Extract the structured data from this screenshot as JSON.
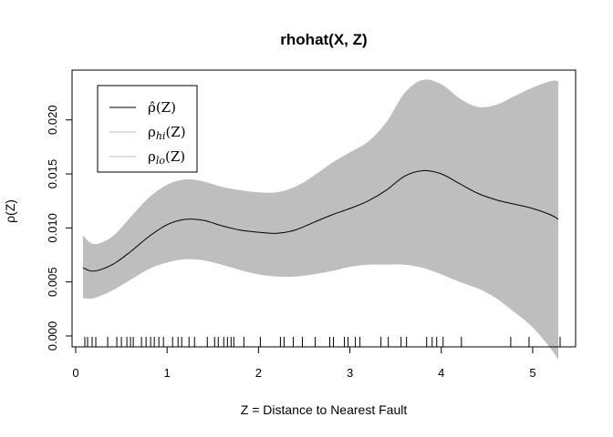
{
  "chart_data": {
    "type": "line",
    "title": "rhohat(X, Z)",
    "xlabel": "Z = Distance to Nearest Fault",
    "ylabel": "ρ(Z)",
    "xlim": [
      0.08,
      5.28
    ],
    "ylim": [
      0.0,
      0.0236
    ],
    "xticks": [
      0,
      1,
      2,
      3,
      4,
      5
    ],
    "yticks": [
      0.0,
      0.005,
      0.01,
      0.015,
      0.02
    ],
    "ytick_labels": [
      "0.000",
      "0.005",
      "0.010",
      "0.015",
      "0.020"
    ],
    "legend_position": "top-left",
    "legend": [
      {
        "base": "ρ̂",
        "sub": "",
        "arg": "(Z)",
        "color": "#000000"
      },
      {
        "base": "ρ",
        "sub": "hi",
        "arg": "(Z)",
        "color": "#bebebe"
      },
      {
        "base": "ρ",
        "sub": "lo",
        "arg": "(Z)",
        "color": "#bebebe"
      }
    ],
    "band_color": "#bebebe",
    "line_color": "#000000",
    "x": [
      0.08,
      0.2,
      0.4,
      0.6,
      0.8,
      1.0,
      1.2,
      1.4,
      1.6,
      1.8,
      2.0,
      2.2,
      2.4,
      2.6,
      2.8,
      3.0,
      3.2,
      3.4,
      3.6,
      3.8,
      4.0,
      4.2,
      4.4,
      4.6,
      4.8,
      5.0,
      5.2,
      5.28
    ],
    "series": [
      {
        "name": "rho_hat",
        "values": [
          0.0063,
          0.006,
          0.0066,
          0.0078,
          0.0092,
          0.0103,
          0.0108,
          0.0107,
          0.0102,
          0.0098,
          0.0096,
          0.0095,
          0.0098,
          0.0105,
          0.0112,
          0.0118,
          0.0125,
          0.0135,
          0.0148,
          0.0153,
          0.015,
          0.0141,
          0.0132,
          0.0126,
          0.0122,
          0.0118,
          0.0112,
          0.0108
        ]
      },
      {
        "name": "rho_hi",
        "values": [
          0.0093,
          0.0085,
          0.0092,
          0.011,
          0.0128,
          0.014,
          0.0145,
          0.0143,
          0.0138,
          0.0135,
          0.0133,
          0.0133,
          0.0138,
          0.0148,
          0.016,
          0.017,
          0.018,
          0.0198,
          0.0225,
          0.0237,
          0.0233,
          0.022,
          0.0212,
          0.0214,
          0.0222,
          0.023,
          0.0236,
          0.0236
        ]
      },
      {
        "name": "rho_lo",
        "values": [
          0.0035,
          0.0035,
          0.0042,
          0.0052,
          0.0062,
          0.0068,
          0.0071,
          0.007,
          0.0066,
          0.0061,
          0.0057,
          0.0055,
          0.0055,
          0.0057,
          0.006,
          0.0064,
          0.0066,
          0.0066,
          0.0066,
          0.0063,
          0.0057,
          0.005,
          0.0044,
          0.0035,
          0.0022,
          0.0008,
          -0.0012,
          -0.0022
        ]
      }
    ],
    "rug": [
      0.1,
      0.13,
      0.18,
      0.22,
      0.35,
      0.45,
      0.5,
      0.56,
      0.6,
      0.63,
      0.72,
      0.77,
      0.82,
      0.86,
      0.91,
      0.96,
      1.06,
      1.12,
      1.16,
      1.24,
      1.3,
      1.44,
      1.52,
      1.56,
      1.62,
      1.66,
      1.7,
      1.73,
      1.84,
      2.02,
      2.24,
      2.28,
      2.38,
      2.48,
      2.62,
      2.78,
      2.82,
      2.94,
      2.98,
      3.06,
      3.11,
      3.34,
      3.42,
      3.56,
      3.62,
      3.84,
      3.9,
      3.95,
      4.02,
      4.22,
      4.76,
      4.96,
      5.3
    ]
  }
}
